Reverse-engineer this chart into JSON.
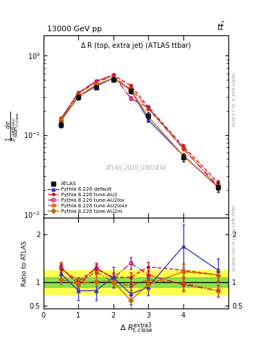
{
  "title_top_left": "13000 GeV pp",
  "title_top_right": "tt",
  "plot_title": "Δ R (top, extra jet) (ATLAS ttbar)",
  "xlabel": "Δ R",
  "ylabel_ratio": "Ratio to ATLAS",
  "watermark": "ATLAS_2020_I1801434",
  "rivet_label": "Rivet 3.1.10, ≥ 300k events",
  "mcplots_label": "mcplots.cern.ch [arXiv:1306.3436]",
  "x_centers": [
    0.5,
    1.0,
    1.5,
    2.0,
    2.5,
    3.0,
    4.0,
    5.0
  ],
  "atlas_y": [
    0.135,
    0.3,
    0.4,
    0.5,
    0.36,
    0.175,
    0.052,
    0.022
  ],
  "atlas_yerr": [
    0.012,
    0.022,
    0.025,
    0.035,
    0.025,
    0.018,
    0.006,
    0.003
  ],
  "pythia_default_y": [
    0.155,
    0.305,
    0.41,
    0.52,
    0.37,
    0.155,
    0.055,
    0.022
  ],
  "pythia_default_yerr": [
    0.008,
    0.012,
    0.015,
    0.018,
    0.015,
    0.01,
    0.004,
    0.002
  ],
  "pythia_au2_y": [
    0.16,
    0.34,
    0.47,
    0.57,
    0.42,
    0.225,
    0.072,
    0.025
  ],
  "pythia_au2_yerr": [
    0.008,
    0.012,
    0.015,
    0.018,
    0.015,
    0.01,
    0.004,
    0.002
  ],
  "pythia_au2lox_y": [
    0.16,
    0.34,
    0.48,
    0.57,
    0.29,
    0.22,
    0.068,
    0.022
  ],
  "pythia_au2lox_yerr": [
    0.008,
    0.012,
    0.015,
    0.018,
    0.015,
    0.01,
    0.004,
    0.002
  ],
  "pythia_au2loxx_y": [
    0.16,
    0.33,
    0.46,
    0.55,
    0.38,
    0.215,
    0.067,
    0.023
  ],
  "pythia_au2loxx_yerr": [
    0.008,
    0.012,
    0.015,
    0.018,
    0.015,
    0.01,
    0.004,
    0.002
  ],
  "pythia_au2m_y": [
    0.15,
    0.305,
    0.43,
    0.52,
    0.37,
    0.17,
    0.055,
    0.022
  ],
  "pythia_au2m_yerr": [
    0.008,
    0.012,
    0.015,
    0.018,
    0.015,
    0.01,
    0.004,
    0.002
  ],
  "atlas_band_green": 0.1,
  "atlas_band_yellow": 0.25,
  "x_ratio": [
    0.5,
    1.0,
    1.5,
    2.0,
    2.5,
    3.0,
    4.0,
    5.0
  ],
  "ratio_default": [
    1.18,
    0.82,
    0.82,
    1.1,
    0.75,
    0.9,
    1.75,
    1.25
  ],
  "ratio_default_err": [
    0.18,
    0.2,
    0.2,
    0.22,
    0.22,
    0.18,
    0.45,
    0.25
  ],
  "ratio_au2": [
    1.28,
    1.02,
    1.28,
    1.1,
    1.1,
    1.32,
    1.25,
    1.15
  ],
  "ratio_au2_err": [
    0.1,
    0.08,
    0.1,
    0.1,
    0.1,
    0.1,
    0.14,
    0.12
  ],
  "ratio_au2lox": [
    1.3,
    0.95,
    1.3,
    1.08,
    1.4,
    1.15,
    0.95,
    0.82
  ],
  "ratio_au2lox_err": [
    0.1,
    0.08,
    0.1,
    0.1,
    0.12,
    0.1,
    0.14,
    0.12
  ],
  "ratio_au2loxx": [
    1.32,
    0.95,
    1.22,
    1.0,
    0.92,
    1.05,
    0.98,
    0.82
  ],
  "ratio_au2loxx_err": [
    0.1,
    0.08,
    0.1,
    0.1,
    0.1,
    0.1,
    0.14,
    0.12
  ],
  "ratio_au2m": [
    1.05,
    0.97,
    1.02,
    1.01,
    0.62,
    0.95,
    1.22,
    1.15
  ],
  "ratio_au2m_err": [
    0.1,
    0.08,
    0.1,
    0.1,
    0.18,
    0.12,
    0.16,
    0.14
  ],
  "color_atlas": "#111111",
  "color_default": "#3333cc",
  "color_au2": "#cc0000",
  "color_au2lox": "#cc0066",
  "color_au2loxx": "#cc4400",
  "color_au2m": "#cc6600",
  "xlim": [
    0,
    5.3
  ],
  "ylim_main": [
    0.009,
    1.8
  ],
  "ylim_ratio": [
    0.44,
    2.35
  ],
  "ratio_yticks": [
    0.5,
    1.0,
    2.0
  ]
}
